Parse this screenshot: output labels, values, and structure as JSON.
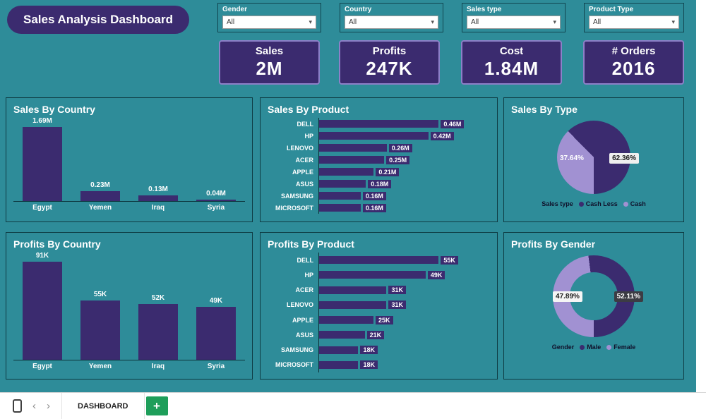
{
  "title": "Sales Analysis Dashboard",
  "icons": {
    "dropdown_caret": "▾"
  },
  "colors": {
    "background": "#2e8c99",
    "primary": "#3b2b6f",
    "secondary": "#a191d2"
  },
  "filters": [
    {
      "label": "Gender",
      "value": "All"
    },
    {
      "label": "Country",
      "value": "All"
    },
    {
      "label": "Sales type",
      "value": "All"
    },
    {
      "label": "Product Type",
      "value": "All"
    }
  ],
  "kpis": [
    {
      "label": "Sales",
      "value": "2M"
    },
    {
      "label": "Profits",
      "value": "247K"
    },
    {
      "label": "Cost",
      "value": "1.84M"
    },
    {
      "label": "# Orders",
      "value": "2016"
    }
  ],
  "chart_data": [
    {
      "type": "column",
      "title": "Sales By Country",
      "categories": [
        "Egypt",
        "Yemen",
        "Iraq",
        "Syria"
      ],
      "values": [
        1.69,
        0.23,
        0.13,
        0.04
      ],
      "labels": [
        "1.69M",
        "0.23M",
        "0.13M",
        "0.04M"
      ],
      "ylim": [
        0,
        1.69
      ],
      "bar_color": "#3b2b6f"
    },
    {
      "type": "bar",
      "title": "Sales By Product",
      "categories": [
        "DELL",
        "HP",
        "LENOVO",
        "ACER",
        "APPLE",
        "ASUS",
        "SAMSUNG",
        "MICROSOFT"
      ],
      "values": [
        0.46,
        0.42,
        0.26,
        0.25,
        0.21,
        0.18,
        0.16,
        0.16
      ],
      "labels": [
        "0.46M",
        "0.42M",
        "0.26M",
        "0.25M",
        "0.21M",
        "0.18M",
        "0.16M",
        "0.16M"
      ],
      "bar_color": "#3b2b6f"
    },
    {
      "type": "pie",
      "title": "Sales By Type",
      "size": 104,
      "hole": 0,
      "start_deg": 180,
      "segments": [
        {
          "name": "Cash",
          "pct": 37.64,
          "color": "#a191d2"
        },
        {
          "name": "Cash Less",
          "pct": 62.36,
          "color": "#3b2b6f"
        }
      ],
      "labels": [
        {
          "text": "37.64%",
          "side": "left",
          "bg": "transparent",
          "color": "#ffffff"
        },
        {
          "text": "62.36%",
          "side": "right",
          "bg": "#efefef",
          "color": "#1b1b1b"
        }
      ],
      "legend": {
        "title": "Sales type",
        "items": [
          {
            "name": "Cash Less",
            "color": "#3b2b6f"
          },
          {
            "name": "Cash",
            "color": "#a191d2"
          }
        ]
      }
    },
    {
      "type": "column",
      "title": "Profits By Country",
      "categories": [
        "Egypt",
        "Yemen",
        "Iraq",
        "Syria"
      ],
      "values": [
        91,
        55,
        52,
        49
      ],
      "labels": [
        "91K",
        "55K",
        "52K",
        "49K"
      ],
      "ylim": [
        0,
        91
      ],
      "bar_color": "#3b2b6f"
    },
    {
      "type": "bar",
      "title": "Profits By Product",
      "categories": [
        "DELL",
        "HP",
        "ACER",
        "LENOVO",
        "APPLE",
        "ASUS",
        "SAMSUNG",
        "MICROSOFT"
      ],
      "values": [
        55,
        49,
        31,
        31,
        25,
        21,
        18,
        18
      ],
      "labels": [
        "55K",
        "49K",
        "31K",
        "31K",
        "25K",
        "21K",
        "18K",
        "18K"
      ],
      "bar_color": "#3b2b6f"
    },
    {
      "type": "pie",
      "title": "Profits By Gender",
      "size": 116,
      "hole": 0.58,
      "start_deg": 180,
      "segments": [
        {
          "name": "Female",
          "pct": 47.89,
          "color": "#a191d2"
        },
        {
          "name": "Male",
          "pct": 52.11,
          "color": "#3b2b6f"
        }
      ],
      "labels": [
        {
          "text": "47.89%",
          "side": "left",
          "bg": "#f5f5f5",
          "color": "#1b1b1b"
        },
        {
          "text": "52.11%",
          "side": "right",
          "bg": "#3c3c44",
          "color": "#ffffff"
        }
      ],
      "legend": {
        "title": "Gender",
        "items": [
          {
            "name": "Male",
            "color": "#3b2b6f"
          },
          {
            "name": "Female",
            "color": "#a191d2"
          }
        ]
      }
    }
  ],
  "footer": {
    "tab_label": "DASHBOARD",
    "add_label": "+",
    "prev_icon": "‹",
    "next_icon": "›"
  }
}
